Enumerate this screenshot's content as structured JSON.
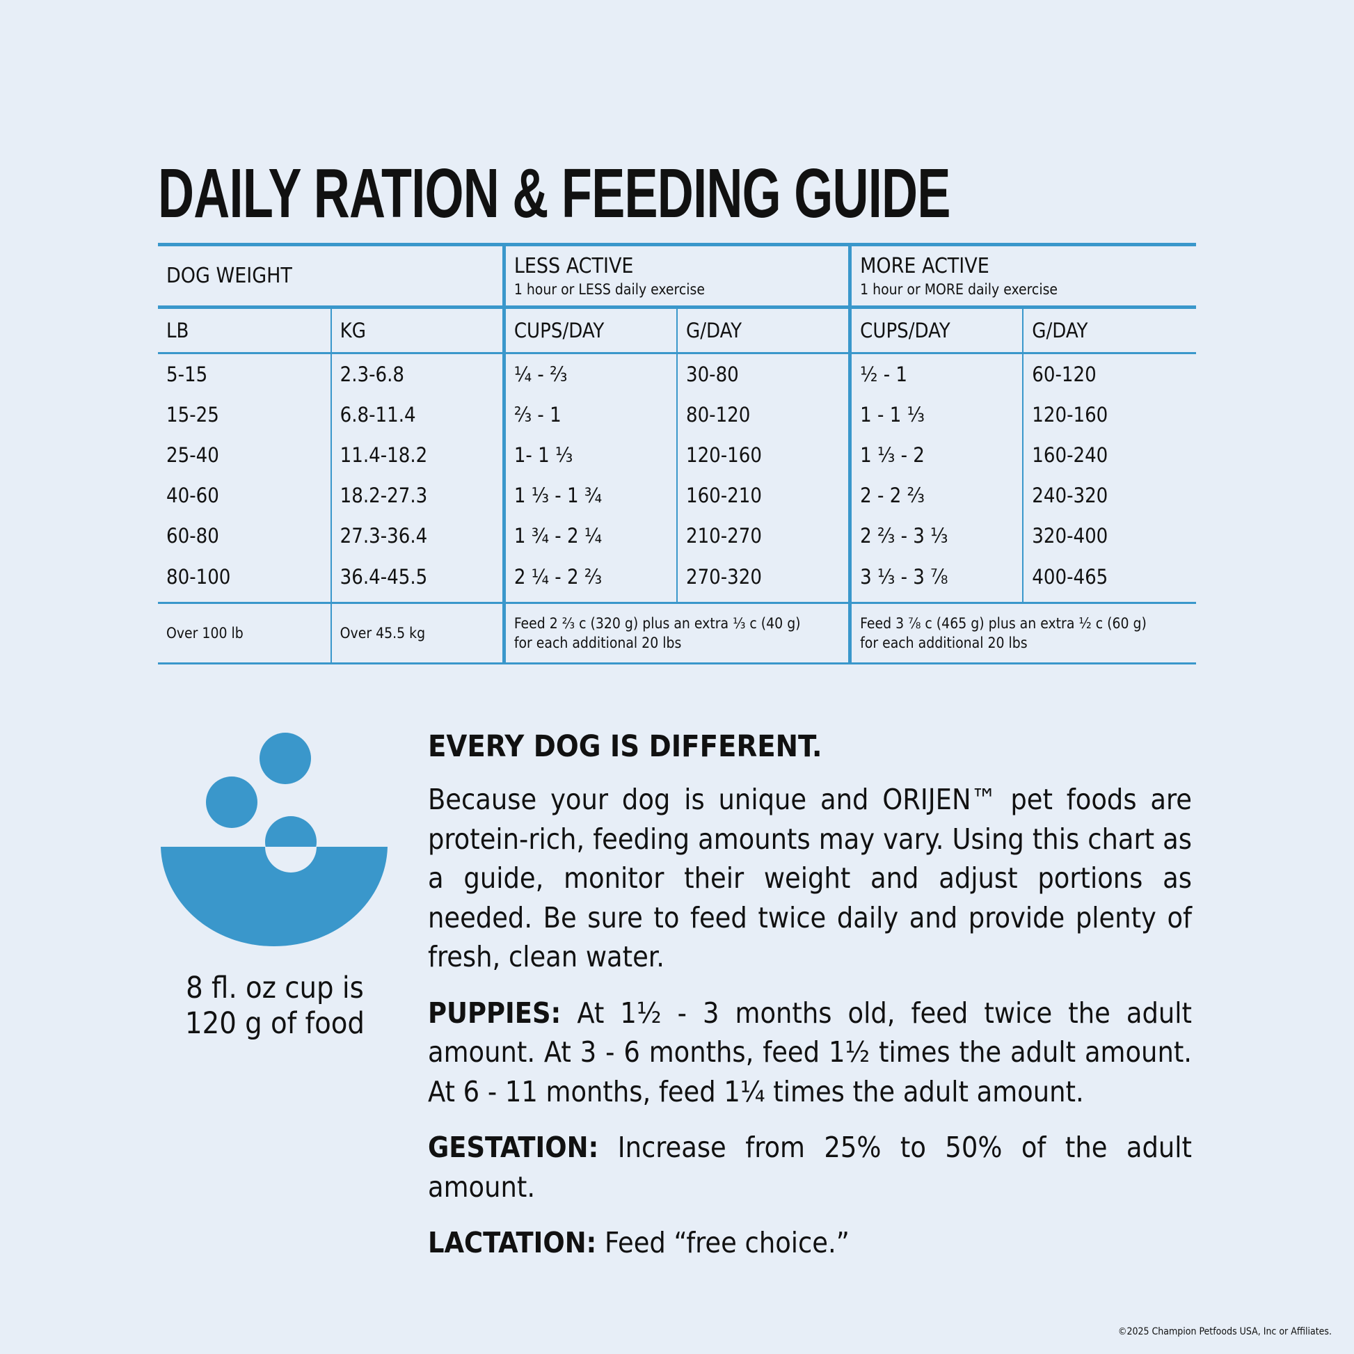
{
  "title": "DAILY RATION & FEEDING GUIDE",
  "colors": {
    "accent": "#3a97cb",
    "background": "#e7eef7"
  },
  "table": {
    "group_headers": {
      "dog_weight": "DOG WEIGHT",
      "less_active": {
        "label": "LESS ACTIVE",
        "sub": "1 hour or LESS daily exercise"
      },
      "more_active": {
        "label": "MORE ACTIVE",
        "sub": "1 hour or MORE daily exercise"
      }
    },
    "columns": [
      "LB",
      "KG",
      "CUPS/DAY",
      "G/DAY",
      "CUPS/DAY",
      "G/DAY"
    ],
    "rows": [
      [
        "5-15",
        "2.3-6.8",
        "¼ - ⅔",
        "30-80",
        "½ - 1",
        "60-120"
      ],
      [
        "15-25",
        "6.8-11.4",
        "⅔ - 1",
        "80-120",
        "1 - 1 ⅓",
        "120-160"
      ],
      [
        "25-40",
        "11.4-18.2",
        "1- 1 ⅓",
        "120-160",
        "1 ⅓ - 2",
        "160-240"
      ],
      [
        "40-60",
        "18.2-27.3",
        "1 ⅓ - 1 ¾",
        "160-210",
        "2 - 2 ⅔",
        "240-320"
      ],
      [
        "60-80",
        "27.3-36.4",
        "1 ¾ - 2 ¼",
        "210-270",
        "2 ⅔ - 3 ⅓",
        "320-400"
      ],
      [
        "80-100",
        "36.4-45.5",
        "2 ¼ - 2 ⅔",
        "270-320",
        "3 ⅓ - 3 ⅞",
        "400-465"
      ]
    ],
    "footer_row": {
      "lb": "Over 100 lb",
      "kg": "Over 45.5 kg",
      "less_line1": "Feed 2 ⅔ c (320 g) plus an extra ⅓ c (40 g)",
      "less_line2": "for each additional 20 lbs",
      "more_line1": "Feed 3 ⅞ c (465 g) plus an extra ½ c (60 g)",
      "more_line2": "for each additional 20 lbs"
    }
  },
  "bowl": {
    "icon": "food-bowl-icon",
    "caption_line1": "8 fl. oz cup is",
    "caption_line2": "120 g of food"
  },
  "info": {
    "heading": "EVERY DOG IS DIFFERENT.",
    "body": "Because your dog is unique and ORIJEN™ pet foods are protein-rich, feeding amounts may vary. Using this chart as a guide, monitor their weight and adjust portions as needed. Be sure to feed twice daily and provide plenty of fresh, clean water.",
    "puppies_label": "PUPPIES:",
    "puppies_text": " At 1½ - 3 months old, feed twice the adult amount. At 3 - 6 months, feed 1½ times the adult amount. At 6 - 11 months, feed 1¼ times the adult amount.",
    "gestation_label": "GESTATION:",
    "gestation_text": " Increase from 25% to 50% of the adult amount.",
    "lactation_label": "LACTATION:",
    "lactation_text": " Feed “free choice.”"
  },
  "footer": "©2025 Champion Petfoods USA, Inc or Affiliates."
}
